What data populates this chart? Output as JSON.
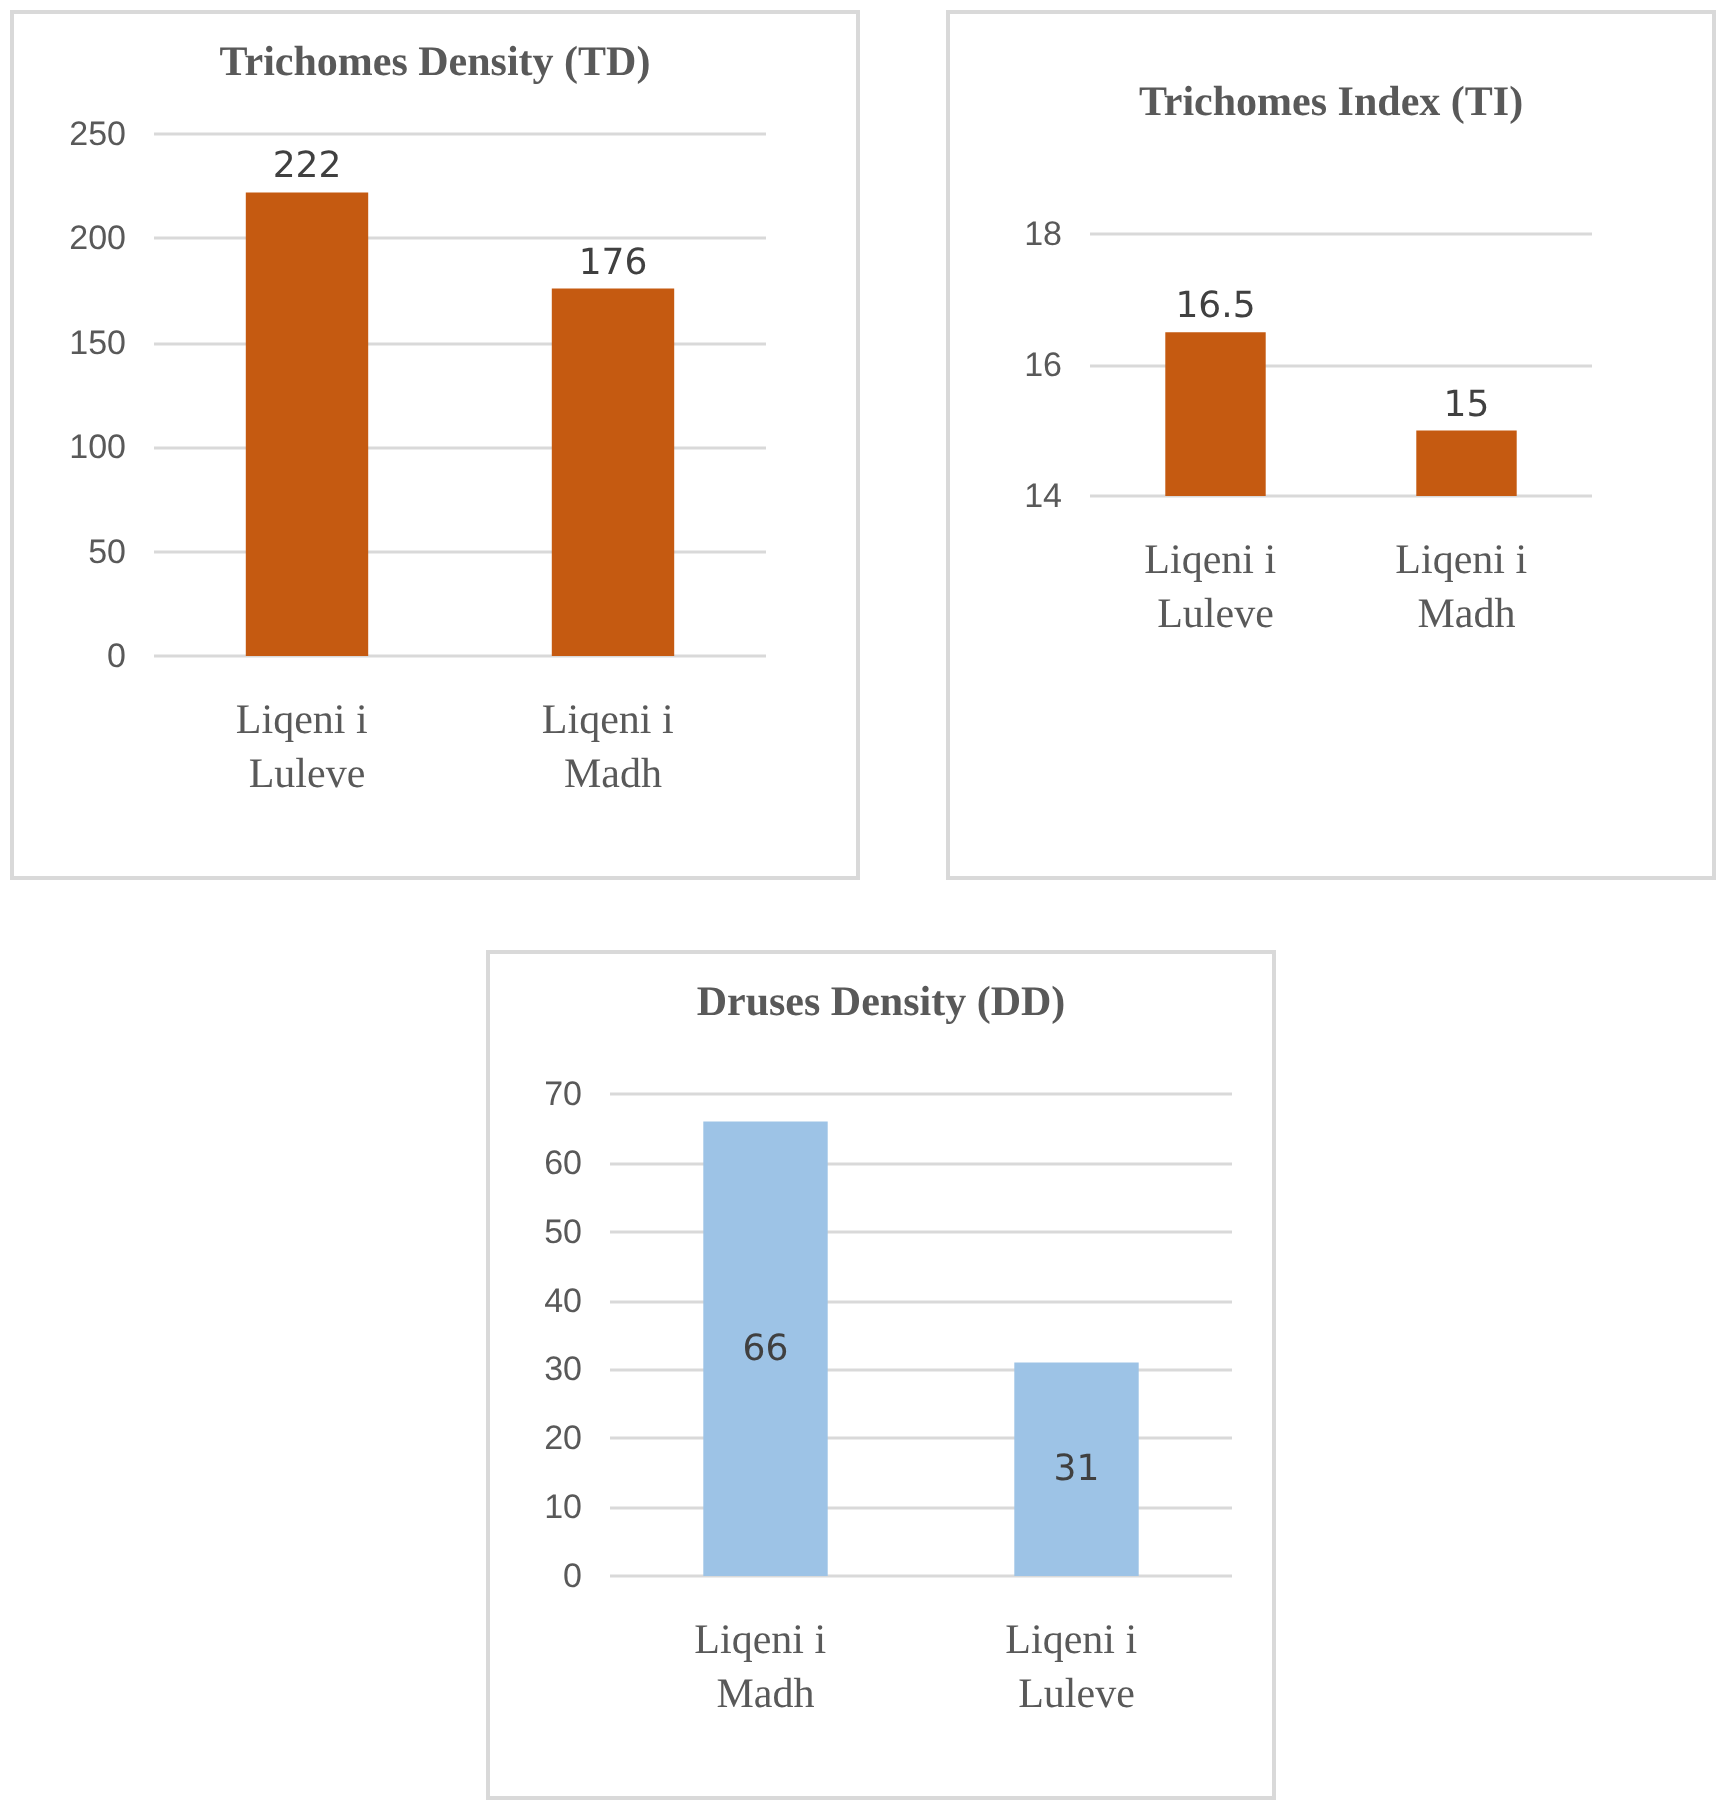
{
  "chart_data": [
    {
      "type": "bar",
      "title": "Trichomes Density (TD)",
      "categories": [
        "Liqeni i Luleve",
        "Liqeni i Madh"
      ],
      "values": [
        222,
        176
      ],
      "color": "#c55a11",
      "ylim": [
        0,
        250
      ],
      "yticks": [
        0,
        50,
        100,
        150,
        200,
        250
      ],
      "grid": "y",
      "data_labels": true
    },
    {
      "type": "bar",
      "title": "Trichomes Index (TI)",
      "categories": [
        "Liqeni i Luleve",
        "Liqeni i Madh"
      ],
      "values": [
        16.5,
        15
      ],
      "color": "#c55a11",
      "ylim": [
        14,
        18
      ],
      "yticks": [
        14,
        16,
        18
      ],
      "grid": "y",
      "data_labels": true
    },
    {
      "type": "bar",
      "title": "Druses Density (DD)",
      "categories": [
        "Liqeni i Madh",
        "Liqeni i Luleve"
      ],
      "values": [
        66,
        31
      ],
      "color": "#9dc3e6",
      "ylim": [
        0,
        70
      ],
      "yticks": [
        0,
        10,
        20,
        30,
        40,
        50,
        60,
        70
      ],
      "grid": "y",
      "data_labels": true
    }
  ]
}
